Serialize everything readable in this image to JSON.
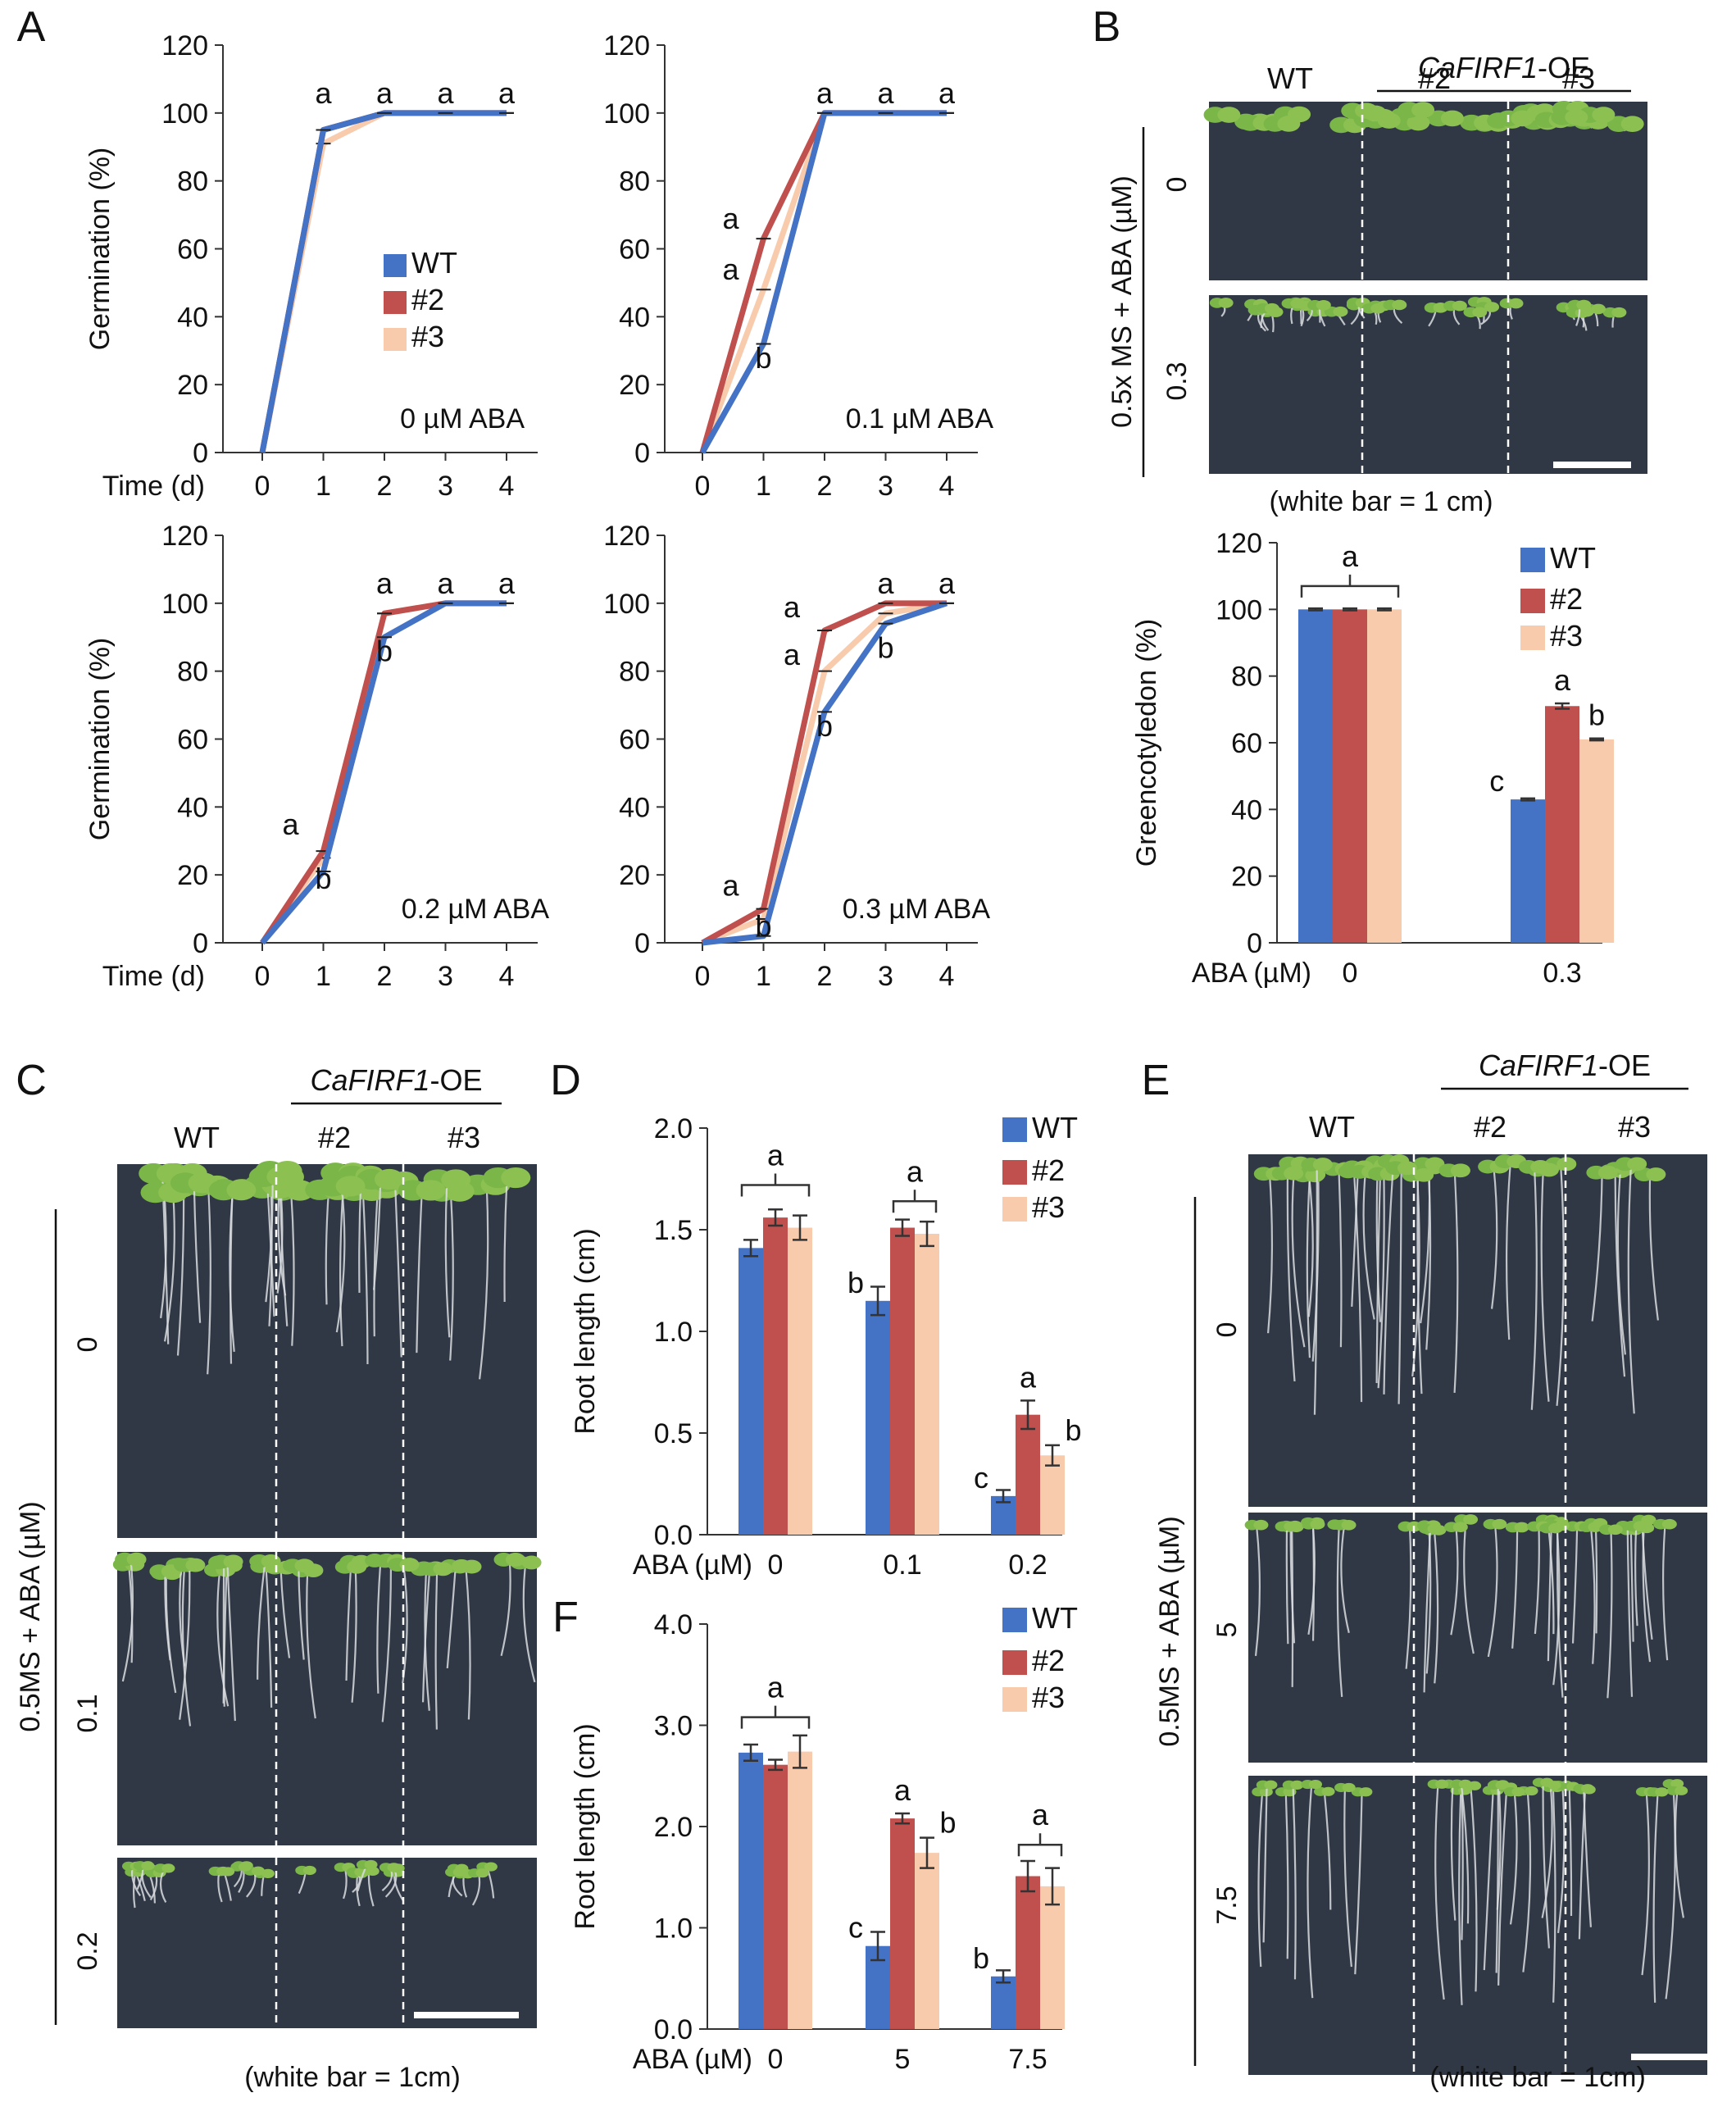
{
  "colors": {
    "WT": "#4472C4",
    "L2": "#C0504D",
    "L3": "#F8CBAD",
    "photo_bg": "#313845",
    "seedling": "#7ab648",
    "root": "#d9dde0"
  },
  "panel_letters": [
    "A",
    "B",
    "C",
    "D",
    "E",
    "F"
  ],
  "legend": [
    "WT",
    "#2",
    "#3"
  ],
  "time_label": "Time (d)",
  "germination_ylabel": "Germination (%)",
  "aba_x_label": "ABA (µM)",
  "genotypes": {
    "wt": "WT",
    "l2": "#2",
    "l3": "#3",
    "oe": "CaFIRF1",
    "oe_suffix": "-OE"
  },
  "photo_B": {
    "side_label": "0.5x MS + ABA (µM)",
    "rows": [
      "0",
      "0.3"
    ],
    "scale": "(white bar = 1 cm)"
  },
  "photo_C": {
    "side_label": "0.5MS + ABA (µM)",
    "rows": [
      "0",
      "0.1",
      "0.2"
    ],
    "scale": "(white bar = 1cm)"
  },
  "photo_E": {
    "side_label": "0.5MS + ABA (µM)",
    "rows": [
      "0",
      "5",
      "7.5"
    ],
    "scale": "(white bar = 1cm)"
  },
  "chart_data": [
    {
      "id": "A1",
      "type": "line",
      "condition": "0 µM ABA",
      "ylabel": "Germination (%)",
      "xlabel": "Time (d)",
      "x": [
        0,
        1,
        2,
        3,
        4
      ],
      "ylim": [
        0,
        120
      ],
      "yticks": [
        0,
        20,
        40,
        60,
        80,
        100,
        120
      ],
      "legend_position": "center",
      "series": [
        {
          "name": "WT",
          "values": [
            0,
            95,
            100,
            100,
            100
          ]
        },
        {
          "name": "#2",
          "values": [
            0,
            95,
            100,
            100,
            100
          ]
        },
        {
          "name": "#3",
          "values": [
            0,
            91,
            100,
            100,
            100
          ]
        }
      ],
      "annotations": [
        {
          "x": 1,
          "y": 100,
          "text": "a"
        },
        {
          "x": 2,
          "y": 100,
          "text": "a"
        },
        {
          "x": 3,
          "y": 100,
          "text": "a"
        },
        {
          "x": 4,
          "y": 100,
          "text": "a"
        }
      ]
    },
    {
      "id": "A2",
      "type": "line",
      "condition": "0.1 µM ABA",
      "ylabel": "",
      "xlabel": "",
      "x": [
        0,
        1,
        2,
        3,
        4
      ],
      "ylim": [
        0,
        120
      ],
      "yticks": [
        0,
        20,
        40,
        60,
        80,
        100,
        120
      ],
      "series": [
        {
          "name": "WT",
          "values": [
            0,
            32,
            100,
            100,
            100
          ]
        },
        {
          "name": "#2",
          "values": [
            0,
            63,
            100,
            100,
            100
          ]
        },
        {
          "name": "#3",
          "values": [
            0,
            48,
            100,
            100,
            100
          ]
        }
      ],
      "annotations": [
        {
          "x": 1,
          "y": 63,
          "text": "a",
          "side": "left"
        },
        {
          "x": 1,
          "y": 48,
          "text": "a",
          "side": "left"
        },
        {
          "x": 1,
          "y": 22,
          "text": "b"
        },
        {
          "x": 2,
          "y": 100,
          "text": "a"
        },
        {
          "x": 3,
          "y": 100,
          "text": "a"
        },
        {
          "x": 4,
          "y": 100,
          "text": "a"
        }
      ]
    },
    {
      "id": "A3",
      "type": "line",
      "condition": "0.2 µM ABA",
      "ylabel": "Germination (%)",
      "xlabel": "Time (d)",
      "x": [
        0,
        1,
        2,
        3,
        4
      ],
      "ylim": [
        0,
        120
      ],
      "yticks": [
        0,
        20,
        40,
        60,
        80,
        100,
        120
      ],
      "series": [
        {
          "name": "WT",
          "values": [
            0,
            21,
            90,
            100,
            100
          ]
        },
        {
          "name": "#2",
          "values": [
            0,
            27,
            97,
            100,
            100
          ]
        },
        {
          "name": "#3",
          "values": [
            0,
            25,
            97,
            100,
            100
          ]
        }
      ],
      "annotations": [
        {
          "x": 1,
          "y": 29,
          "text": "a",
          "side": "left"
        },
        {
          "x": 1,
          "y": 13,
          "text": "b"
        },
        {
          "x": 2,
          "y": 100,
          "text": "a"
        },
        {
          "x": 2,
          "y": 80,
          "text": "b"
        },
        {
          "x": 3,
          "y": 100,
          "text": "a"
        },
        {
          "x": 4,
          "y": 100,
          "text": "a"
        }
      ]
    },
    {
      "id": "A4",
      "type": "line",
      "condition": "0.3 µM ABA",
      "ylabel": "",
      "xlabel": "",
      "x": [
        0,
        1,
        2,
        3,
        4
      ],
      "ylim": [
        0,
        120
      ],
      "yticks": [
        0,
        20,
        40,
        60,
        80,
        100,
        120
      ],
      "series": [
        {
          "name": "WT",
          "values": [
            0,
            2,
            68,
            94,
            100
          ]
        },
        {
          "name": "#2",
          "values": [
            0,
            10,
            92,
            100,
            100
          ]
        },
        {
          "name": "#3",
          "values": [
            0,
            7,
            80,
            97,
            100
          ]
        }
      ],
      "annotations": [
        {
          "x": 1,
          "y": 11,
          "text": "a",
          "side": "left"
        },
        {
          "x": 1,
          "y": -1,
          "text": "b"
        },
        {
          "x": 2,
          "y": 93,
          "text": "a",
          "side": "left"
        },
        {
          "x": 2,
          "y": 79,
          "text": "a",
          "side": "left"
        },
        {
          "x": 2,
          "y": 58,
          "text": "b"
        },
        {
          "x": 3,
          "y": 100,
          "text": "a"
        },
        {
          "x": 3,
          "y": 81,
          "text": "b"
        },
        {
          "x": 4,
          "y": 100,
          "text": "a"
        }
      ]
    },
    {
      "id": "B",
      "type": "bar",
      "ylabel": "Greencotyledon (%)",
      "xlabel": "ABA (µM)",
      "categories": [
        "0",
        "0.3"
      ],
      "ylim": [
        0,
        120
      ],
      "yticks": [
        0,
        20,
        40,
        60,
        80,
        100,
        120
      ],
      "legend_position": "top-right",
      "series": [
        {
          "name": "WT",
          "values": [
            100,
            43
          ],
          "errors": [
            0.3,
            0.3
          ]
        },
        {
          "name": "#2",
          "values": [
            100,
            71
          ],
          "errors": [
            0.3,
            0.8
          ]
        },
        {
          "name": "#3",
          "values": [
            100,
            61
          ],
          "errors": [
            0.3,
            0.3
          ]
        }
      ],
      "annotations": [
        {
          "category": 0,
          "text": "a",
          "bracket": true,
          "y": 107
        },
        {
          "category": 1,
          "series": 0,
          "text": "c"
        },
        {
          "category": 1,
          "series": 1,
          "text": "a"
        },
        {
          "category": 1,
          "series": 2,
          "text": "b"
        }
      ]
    },
    {
      "id": "D",
      "type": "bar",
      "ylabel": "Root length (cm)",
      "xlabel": "ABA (µM)",
      "categories": [
        "0",
        "0.1",
        "0.2"
      ],
      "ylim": [
        0,
        2.0
      ],
      "yticks": [
        0.0,
        0.5,
        1.0,
        1.5,
        2.0
      ],
      "legend_position": "top-right",
      "series": [
        {
          "name": "WT",
          "values": [
            1.41,
            1.15,
            0.19
          ],
          "errors": [
            0.04,
            0.07,
            0.03
          ]
        },
        {
          "name": "#2",
          "values": [
            1.56,
            1.51,
            0.59
          ],
          "errors": [
            0.04,
            0.04,
            0.07
          ]
        },
        {
          "name": "#3",
          "values": [
            1.51,
            1.48,
            0.39
          ],
          "errors": [
            0.06,
            0.06,
            0.05
          ]
        }
      ],
      "annotations": [
        {
          "category": 0,
          "text": "a",
          "bracket": true,
          "y": 1.72
        },
        {
          "category": 1,
          "series": 0,
          "text": "b"
        },
        {
          "category": 1,
          "text": "a",
          "bracket": true,
          "brackets_series": [
            1,
            2
          ],
          "y": 1.64
        },
        {
          "category": 2,
          "series": 0,
          "text": "c"
        },
        {
          "category": 2,
          "series": 1,
          "text": "a"
        },
        {
          "category": 2,
          "series": 2,
          "text": "b",
          "side": "left"
        }
      ]
    },
    {
      "id": "F",
      "type": "bar",
      "ylabel": "Root length (cm)",
      "xlabel": "ABA (µM)",
      "categories": [
        "0",
        "5",
        "7.5"
      ],
      "ylim": [
        0,
        4.0
      ],
      "yticks": [
        "0.0",
        "1.0",
        "2.0",
        "3.0",
        "4.0"
      ],
      "legend_position": "top-right",
      "series": [
        {
          "name": "WT",
          "values": [
            2.73,
            0.82,
            0.52
          ],
          "errors": [
            0.08,
            0.14,
            0.06
          ]
        },
        {
          "name": "#2",
          "values": [
            2.61,
            2.08,
            1.51
          ],
          "errors": [
            0.05,
            0.05,
            0.15
          ]
        },
        {
          "name": "#3",
          "values": [
            2.74,
            1.74,
            1.41
          ],
          "errors": [
            0.16,
            0.15,
            0.18
          ]
        }
      ],
      "annotations": [
        {
          "category": 0,
          "text": "a",
          "bracket": true,
          "y": 3.08
        },
        {
          "category": 1,
          "series": 0,
          "text": "c"
        },
        {
          "category": 1,
          "series": 1,
          "text": "a"
        },
        {
          "category": 1,
          "series": 2,
          "text": "b",
          "side": "left"
        },
        {
          "category": 2,
          "series": 0,
          "text": "b"
        },
        {
          "category": 2,
          "text": "a",
          "bracket": true,
          "brackets_series": [
            1,
            2
          ],
          "y": 1.82
        }
      ]
    }
  ]
}
